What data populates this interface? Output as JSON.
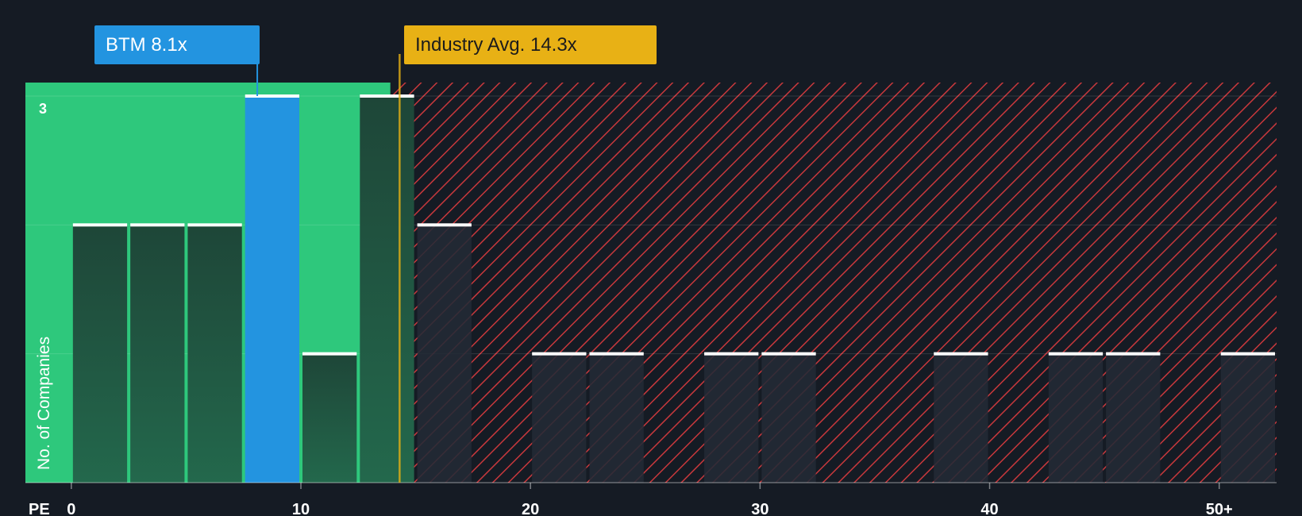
{
  "chart_data": {
    "type": "bar",
    "metric_label": "PE",
    "ylabel": "No. of Companies",
    "ylim": [
      0,
      3
    ],
    "y_tick_labels": [
      {
        "value": 3,
        "label": "3"
      }
    ],
    "xlim": [
      -2.0,
      52.5
    ],
    "x_ticks": [
      {
        "value": 0,
        "label": "0"
      },
      {
        "value": 10,
        "label": "10"
      },
      {
        "value": 20,
        "label": "20"
      },
      {
        "value": 30,
        "label": "30"
      },
      {
        "value": 40,
        "label": "40"
      },
      {
        "value": 50,
        "label": "50+"
      }
    ],
    "bin_width": 2.5,
    "bins": [
      {
        "start": 0,
        "end": 2.5,
        "count": 2
      },
      {
        "start": 2.5,
        "end": 5,
        "count": 2
      },
      {
        "start": 5,
        "end": 7.5,
        "count": 2
      },
      {
        "start": 7.5,
        "end": 10,
        "count": 3
      },
      {
        "start": 10,
        "end": 12.5,
        "count": 1
      },
      {
        "start": 12.5,
        "end": 15,
        "count": 3
      },
      {
        "start": 15,
        "end": 17.5,
        "count": 2
      },
      {
        "start": 20,
        "end": 22.5,
        "count": 1
      },
      {
        "start": 22.5,
        "end": 25,
        "count": 1
      },
      {
        "start": 27.5,
        "end": 30,
        "count": 1
      },
      {
        "start": 30,
        "end": 32.5,
        "count": 1
      },
      {
        "start": 37.5,
        "end": 40,
        "count": 1
      },
      {
        "start": 42.5,
        "end": 45,
        "count": 1
      },
      {
        "start": 45,
        "end": 47.5,
        "count": 1
      },
      {
        "start": 50,
        "end": 52.5,
        "count": 1
      }
    ],
    "company": {
      "ticker": "BTM",
      "value": 8.1,
      "label": "BTM 8.1x"
    },
    "industry_average": {
      "value": 14.3,
      "label": "Industry Avg. 14.3x"
    },
    "undervalued_region": {
      "from": -2.0,
      "to": 13.9
    },
    "overvalued_region": {
      "from": 13.9,
      "to": 52.5
    },
    "grid": true,
    "colors": {
      "background": "#151b24",
      "undervalued_zone": "#2ec87c",
      "overvalued_hatch": "#c8383c",
      "bar_fill": "#1e4638",
      "company_bar": "#2394e0",
      "industry_line": "#e8b115",
      "bar_cap": "#ffffff"
    }
  }
}
